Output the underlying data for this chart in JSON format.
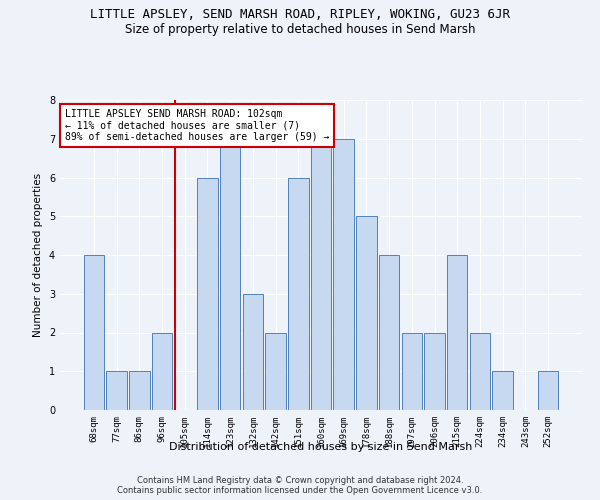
{
  "title": "LITTLE APSLEY, SEND MARSH ROAD, RIPLEY, WOKING, GU23 6JR",
  "subtitle": "Size of property relative to detached houses in Send Marsh",
  "xlabel": "Distribution of detached houses by size in Send Marsh",
  "ylabel": "Number of detached properties",
  "categories": [
    "68sqm",
    "77sqm",
    "86sqm",
    "96sqm",
    "105sqm",
    "114sqm",
    "123sqm",
    "132sqm",
    "142sqm",
    "151sqm",
    "160sqm",
    "169sqm",
    "178sqm",
    "188sqm",
    "197sqm",
    "206sqm",
    "215sqm",
    "224sqm",
    "234sqm",
    "243sqm",
    "252sqm"
  ],
  "values": [
    4,
    1,
    1,
    2,
    0,
    6,
    7,
    3,
    2,
    6,
    7,
    7,
    5,
    4,
    2,
    2,
    4,
    2,
    1,
    0,
    1
  ],
  "bar_color": "#c6d9f0",
  "bar_edge_color": "#4f81bd",
  "highlight_index": 4,
  "highlight_line_color": "#cc0000",
  "annotation_text": "LITTLE APSLEY SEND MARSH ROAD: 102sqm\n← 11% of detached houses are smaller (7)\n89% of semi-detached houses are larger (59) →",
  "annotation_box_color": "#ffffff",
  "annotation_box_edge_color": "#cc0000",
  "ylim": [
    0,
    8
  ],
  "yticks": [
    0,
    1,
    2,
    3,
    4,
    5,
    6,
    7,
    8
  ],
  "footer_line1": "Contains HM Land Registry data © Crown copyright and database right 2024.",
  "footer_line2": "Contains public sector information licensed under the Open Government Licence v3.0.",
  "background_color": "#eef2f9",
  "title_fontsize": 9,
  "subtitle_fontsize": 8.5,
  "xlabel_fontsize": 8,
  "ylabel_fontsize": 7.5,
  "tick_fontsize": 6.5,
  "annotation_fontsize": 7,
  "footer_fontsize": 6
}
